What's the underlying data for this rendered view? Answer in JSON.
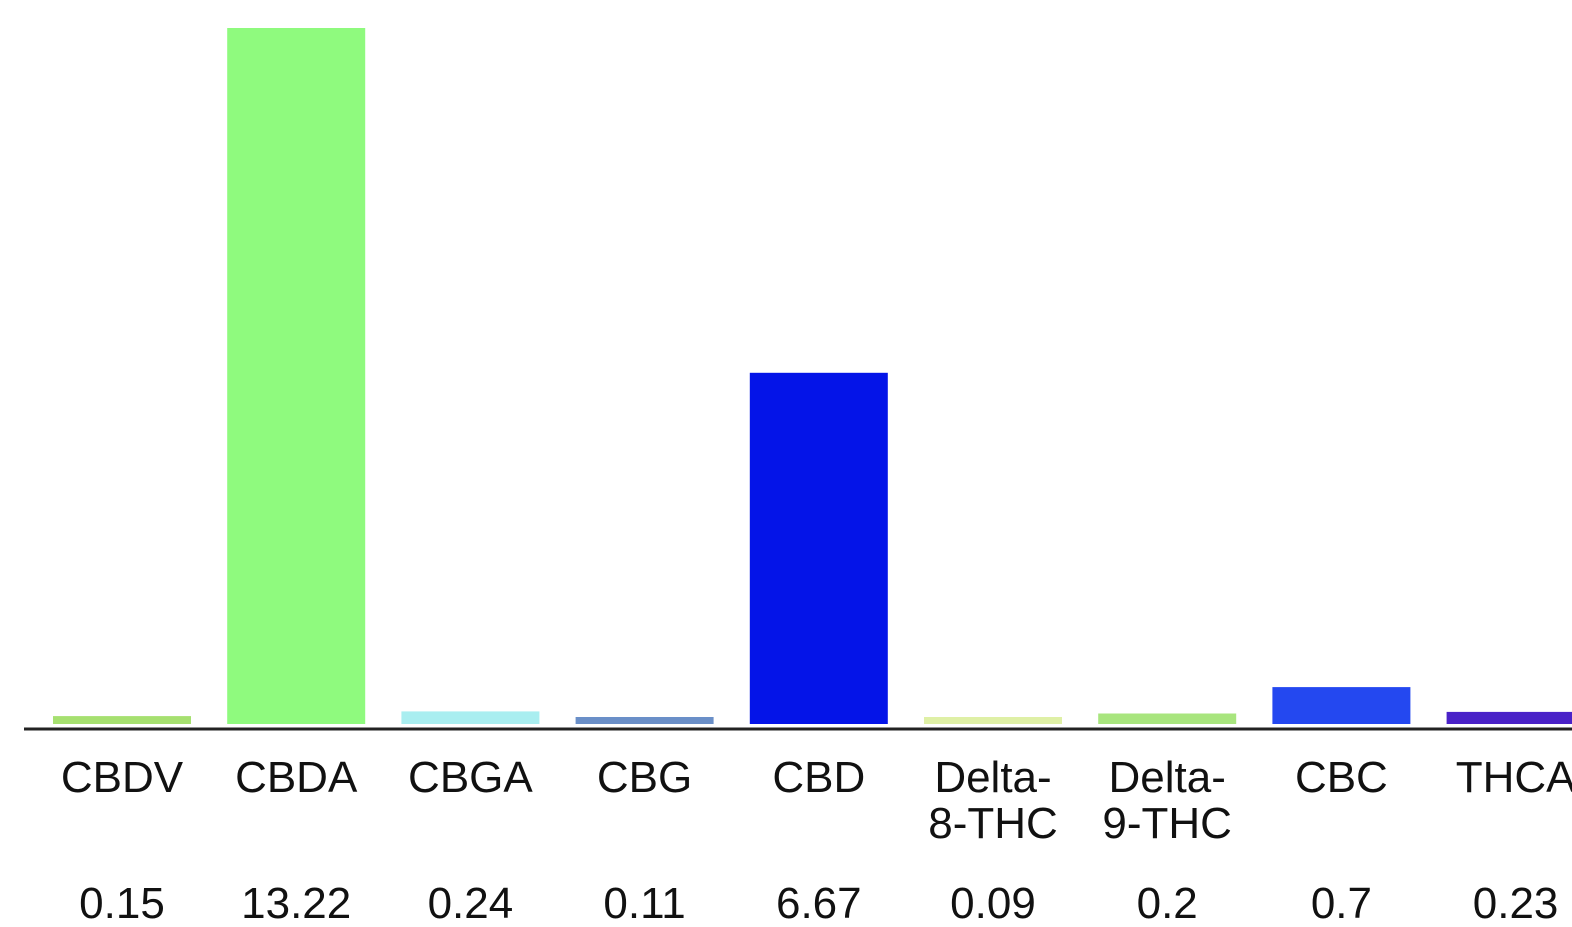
{
  "chart_data": {
    "type": "bar",
    "categories": [
      [
        "CBDV"
      ],
      [
        "CBDA"
      ],
      [
        "CBGA"
      ],
      [
        "CBG"
      ],
      [
        "CBD"
      ],
      [
        "Delta-",
        "8-THC"
      ],
      [
        "Delta-",
        "9-THC"
      ],
      [
        "CBC"
      ],
      [
        "THCA"
      ]
    ],
    "values": [
      0.15,
      13.22,
      0.24,
      0.11,
      6.67,
      0.09,
      0.2,
      0.7,
      0.23
    ],
    "value_labels": [
      "0.15",
      "13.22",
      "0.24",
      "0.11",
      "6.67",
      "0.09",
      "0.2",
      "0.7",
      "0.23"
    ],
    "colors": [
      "#a6e070",
      "#8ffa7e",
      "#a9eef0",
      "#6a8fc8",
      "#0414e8",
      "#dff0a6",
      "#a8e57e",
      "#2448f0",
      "#4a22c8"
    ],
    "ylim": [
      0,
      13.22
    ],
    "axis_color": "#222222",
    "grid": false,
    "title": "",
    "xlabel": "",
    "ylabel": ""
  }
}
